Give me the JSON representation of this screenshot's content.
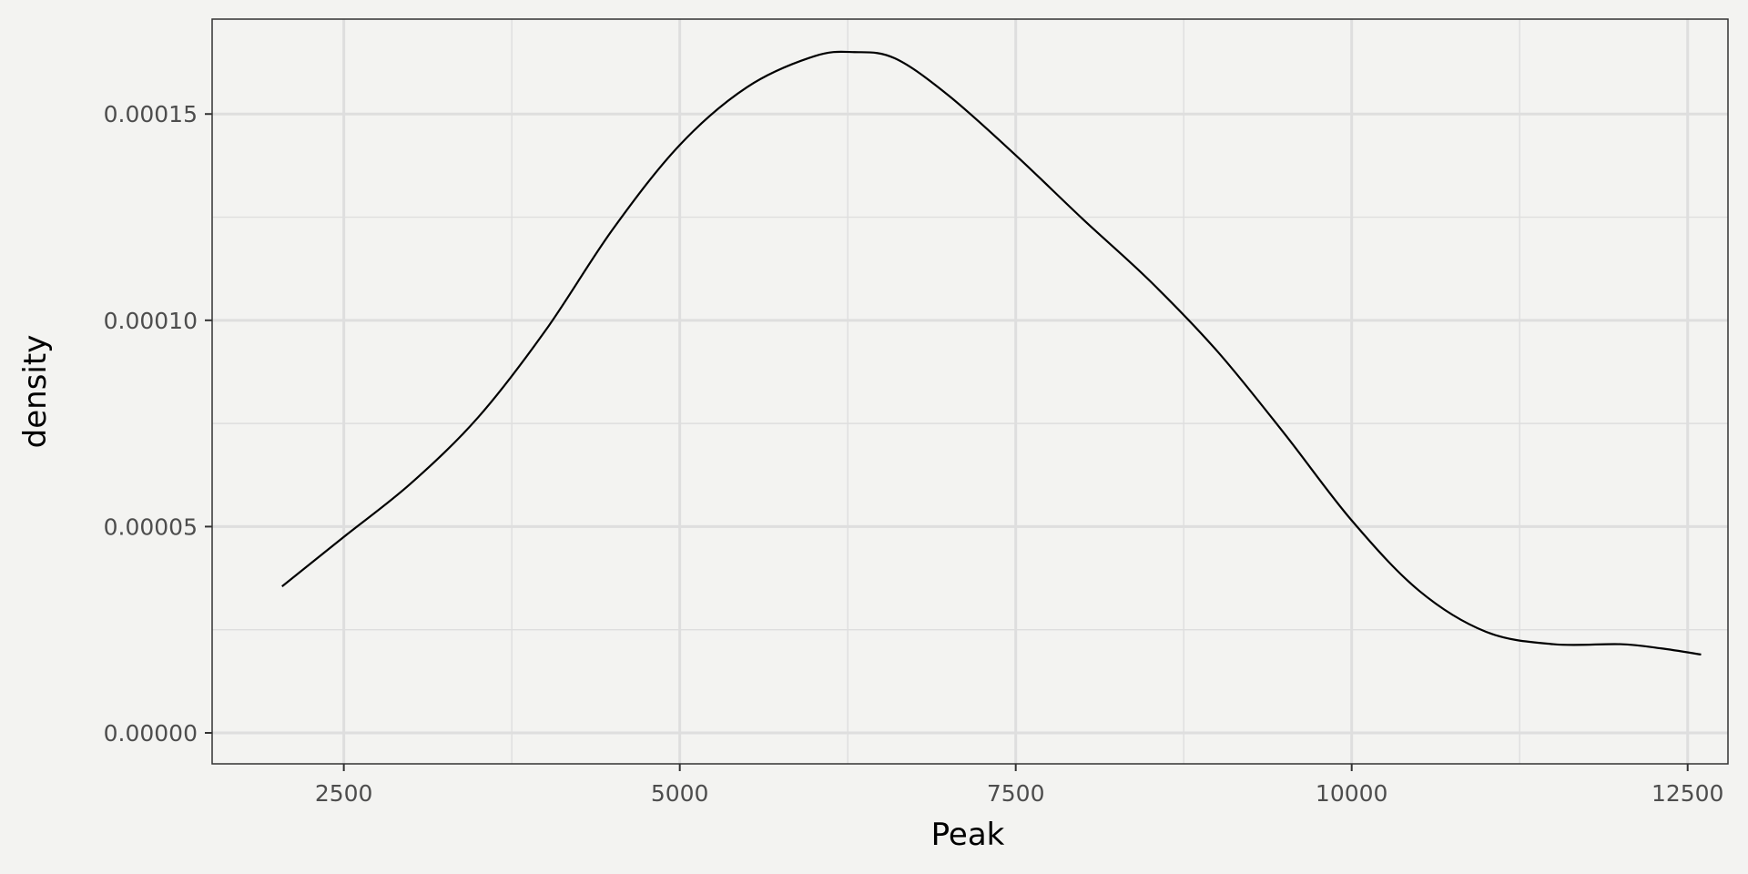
{
  "chart_data": {
    "type": "area",
    "title": "",
    "xlabel": "Peak",
    "ylabel": "density",
    "xlim": [
      1520,
      12800
    ],
    "ylim": [
      -7.5e-06,
      0.000173
    ],
    "x_ticks": [
      2500,
      5000,
      7500,
      10000,
      12500
    ],
    "x_tick_labels": [
      "2500",
      "5000",
      "7500",
      "10000",
      "12500"
    ],
    "x_minor_ticks": [
      3750,
      6250,
      8750,
      11250
    ],
    "y_ticks": [
      0.0,
      5e-05,
      0.0001,
      0.00015
    ],
    "y_tick_labels": [
      "0.00000",
      "0.00005",
      "0.00010",
      "0.00015"
    ],
    "y_minor_ticks": [
      2.5e-05,
      7.5e-05,
      0.000125
    ],
    "grid": true,
    "legend": "none",
    "colors": {
      "background": "#f3f3f1",
      "panel_border": "#333333",
      "grid": "#dedede",
      "line": "#000000"
    },
    "series": [
      {
        "x": [
          2040,
          2500,
          3000,
          3500,
          4000,
          4500,
          5000,
          5500,
          6000,
          6300,
          6600,
          7000,
          7500,
          8000,
          8500,
          9000,
          9500,
          10000,
          10500,
          11000,
          11500,
          12000,
          12300,
          12600
        ],
        "values": [
          3.55e-05,
          4.75e-05,
          6.05e-05,
          7.65e-05,
          9.75e-05,
          0.000122,
          0.0001425,
          0.0001565,
          0.000164,
          0.000165,
          0.0001635,
          0.0001545,
          0.00014,
          0.0001245,
          0.0001095,
          9.25e-05,
          7.25e-05,
          5.15e-05,
          3.45e-05,
          2.45e-05,
          2.15e-05,
          2.15e-05,
          2.05e-05,
          1.9e-05
        ]
      }
    ]
  }
}
